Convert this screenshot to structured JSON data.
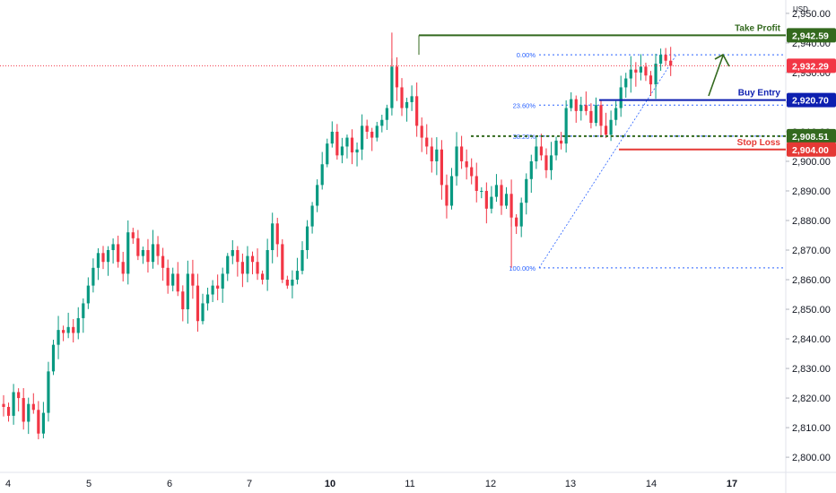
{
  "chart_data": {
    "type": "candlestick",
    "currency": "USD",
    "y_ticks": [
      2800,
      2810,
      2820,
      2830,
      2840,
      2850,
      2860,
      2870,
      2880,
      2890,
      2900,
      2910,
      2920,
      2930,
      2940,
      2950
    ],
    "y_tick_labels": [
      "2,800.00",
      "2,810.00",
      "2,820.00",
      "2,830.00",
      "2,840.00",
      "2,850.00",
      "2,860.00",
      "2,870.00",
      "2,880.00",
      "2,890.00",
      "2,900.00",
      "2,910.00",
      "2,920.00",
      "2,930.00",
      "2,940.00",
      "2,950.00"
    ],
    "ylim": [
      2797,
      2953
    ],
    "x_ticks": [
      {
        "label": "4",
        "x": 4,
        "bold": false
      },
      {
        "label": "5",
        "x": 5,
        "bold": false
      },
      {
        "label": "6",
        "x": 6,
        "bold": false
      },
      {
        "label": "7",
        "x": 7,
        "bold": false
      },
      {
        "label": "10",
        "x": 10,
        "bold": true
      },
      {
        "label": "11",
        "x": 11,
        "bold": false
      },
      {
        "label": "12",
        "x": 12,
        "bold": false
      },
      {
        "label": "13",
        "x": 13,
        "bold": false
      },
      {
        "label": "14",
        "x": 14,
        "bold": false
      },
      {
        "label": "17",
        "x": 17,
        "bold": true
      }
    ],
    "closes": [
      2817,
      2814,
      2822,
      2820,
      2812,
      2818,
      2816,
      2808,
      2815,
      2829,
      2838,
      2843,
      2842,
      2844,
      2842,
      2847,
      2852,
      2858,
      2864,
      2869,
      2866,
      2870,
      2872,
      2866,
      2862,
      2876,
      2874,
      2868,
      2870,
      2866,
      2872,
      2868,
      2864,
      2858,
      2862,
      2856,
      2850,
      2862,
      2858,
      2846,
      2852,
      2855,
      2858,
      2857,
      2862,
      2868,
      2870,
      2866,
      2862,
      2868,
      2866,
      2862,
      2860,
      2870,
      2879,
      2872,
      2860,
      2858,
      2860,
      2863,
      2870,
      2878,
      2885,
      2892,
      2899,
      2906,
      2910,
      2902,
      2905,
      2908,
      2903,
      2904,
      2912,
      2910,
      2908,
      2912,
      2914,
      2918,
      2932,
      2925,
      2918,
      2920,
      2922,
      2912,
      2908,
      2905,
      2900,
      2904,
      2892,
      2885,
      2895,
      2905,
      2900,
      2898,
      2895,
      2890,
      2890,
      2884,
      2888,
      2892,
      2885,
      2889,
      2881,
      2878,
      2886,
      2894,
      2900,
      2905,
      2902,
      2897,
      2902,
      2907,
      2906,
      2918,
      2921,
      2917,
      2919,
      2917,
      2913,
      2919,
      2912,
      2909,
      2914,
      2918,
      2925,
      2928,
      2931,
      2930,
      2932,
      2929,
      2926,
      2933,
      2936,
      2934,
      2932.29
    ],
    "start_open": 2818,
    "fib_levels": [
      {
        "label": "0.00%",
        "value": 2936
      },
      {
        "label": "23.60%",
        "value": 2918.99
      },
      {
        "label": "38.20%",
        "value": 2908.51
      },
      {
        "label": "100.00%",
        "value": 2864
      }
    ],
    "levels": [
      {
        "name": "Take Profit",
        "value": 2942.59,
        "badge": "2,942.59",
        "color": "#33691e"
      },
      {
        "name": "Buy Entry",
        "value": 2920.7,
        "badge": "2,920.70",
        "color": "#0d1fb0"
      },
      {
        "name": "",
        "value": 2908.51,
        "badge": "2,908.51",
        "color": "#33691e"
      },
      {
        "name": "Stop Loss",
        "value": 2904.0,
        "badge": "2,904.00",
        "color": "#e53935"
      }
    ],
    "last_price": {
      "value": 2932.29,
      "badge": "2,932.29",
      "color": "#f23645"
    },
    "colors": {
      "up": "#089981",
      "down": "#f23645"
    }
  }
}
